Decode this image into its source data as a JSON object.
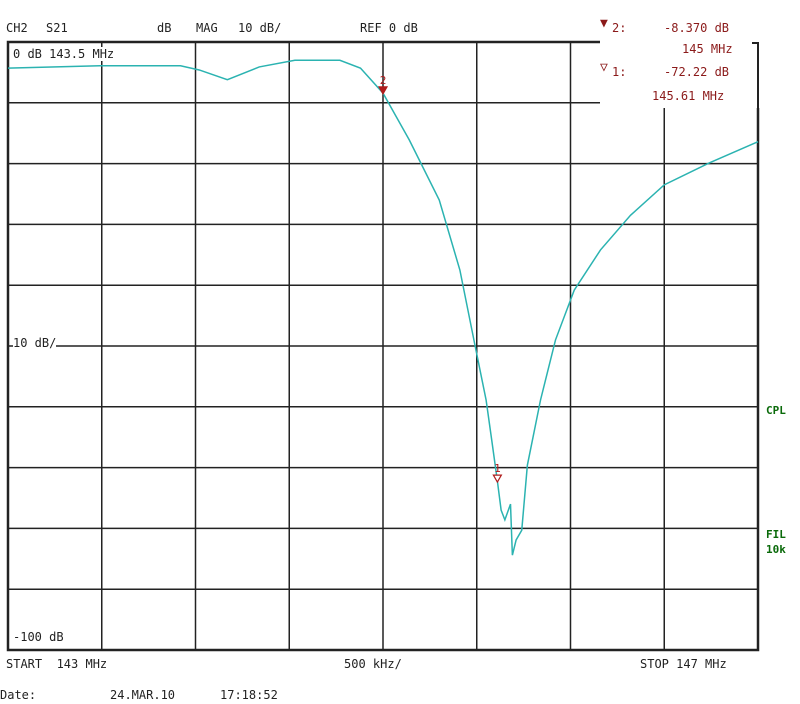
{
  "header": {
    "channel": "CH2",
    "parameter": "S21",
    "unit": "dB",
    "format": "MAG",
    "scale": "10 dB/",
    "reference": "REF 0 dB"
  },
  "markers_readout": [
    {
      "symbol": "▼",
      "id": "2:",
      "value": "-8.370 dB",
      "freq": "145 MHz"
    },
    {
      "symbol": "▽",
      "id": "1:",
      "value": "-72.22 dB",
      "freq": "145.61 MHz"
    }
  ],
  "in_plot_labels": {
    "top_left": "0 dB 143.5 MHz",
    "mid_left": "10 dB/",
    "bottom_left": "-100 dB"
  },
  "side_labels": {
    "cpl": "CPL",
    "fil": "FIL",
    "fil_bw": "10k"
  },
  "footer": {
    "start": "START  143 MHz",
    "span_div": "500 kHz/",
    "stop": "STOP 147 MHz",
    "date_label": "Date:",
    "date": "24.MAR.10",
    "time": "17:18:52"
  },
  "chart_data": {
    "type": "line",
    "xlabel": "",
    "ylabel": "",
    "xlim": [
      143,
      147
    ],
    "ylim": [
      -100,
      0
    ],
    "x_unit": "MHz",
    "y_unit": "dB",
    "grid": true,
    "x_divisions": 8,
    "y_divisions": 10,
    "trace_color": "#2bb3b1",
    "marker_color": "#b01c1c",
    "series": [
      {
        "x": [
          143.0,
          143.49,
          143.92,
          144.02,
          144.17,
          144.34,
          144.53,
          144.77,
          144.88,
          145.0,
          145.14,
          145.3,
          145.41,
          145.49,
          145.55,
          145.58,
          145.61,
          145.63,
          145.65,
          145.68,
          145.69,
          145.71,
          145.74,
          145.77,
          145.84,
          145.92,
          146.02,
          146.16,
          146.32,
          146.5,
          146.74,
          147.0
        ],
        "y": [
          -4.3,
          -3.9,
          -3.9,
          -4.6,
          -6.2,
          -4.1,
          -3.0,
          -3.0,
          -4.3,
          -8.4,
          -16.1,
          -26.0,
          -37.5,
          -49.8,
          -58.9,
          -65.5,
          -72.2,
          -77.0,
          -78.6,
          -76.0,
          -84.4,
          -81.9,
          -80.3,
          -69.6,
          -58.9,
          -49.0,
          -40.8,
          -34.2,
          -28.5,
          -23.5,
          -19.9,
          -16.4
        ]
      }
    ],
    "markers": [
      {
        "label": "2",
        "x": 145.0,
        "y": -8.37,
        "style": "filled"
      },
      {
        "label": "1",
        "x": 145.61,
        "y": -72.22,
        "style": "hollow"
      }
    ]
  }
}
